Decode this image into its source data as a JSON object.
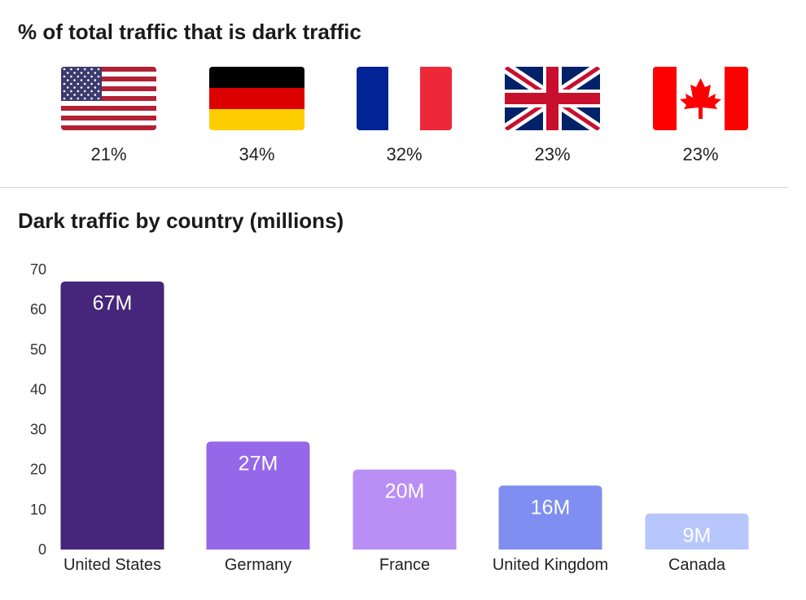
{
  "header": {
    "title": "% of total traffic that is dark traffic"
  },
  "flags": [
    {
      "country": "United States",
      "icon": "us-flag-icon",
      "pct": "21%"
    },
    {
      "country": "Germany",
      "icon": "germany-flag-icon",
      "pct": "34%"
    },
    {
      "country": "France",
      "icon": "france-flag-icon",
      "pct": "32%"
    },
    {
      "country": "United Kingdom",
      "icon": "uk-flag-icon",
      "pct": "23%"
    },
    {
      "country": "Canada",
      "icon": "canada-flag-icon",
      "pct": "23%"
    }
  ],
  "chart_data": {
    "type": "bar",
    "title": "Dark traffic by country (millions)",
    "categories": [
      "United States",
      "Germany",
      "France",
      "United Kingdom",
      "Canada"
    ],
    "values": [
      67,
      27,
      20,
      16,
      9
    ],
    "data_labels": [
      "67M",
      "27M",
      "20M",
      "16M",
      "9M"
    ],
    "colors": [
      "#45267a",
      "#9468e8",
      "#b98ef5",
      "#7f8ef0",
      "#b7c6fb"
    ],
    "xlabel": "",
    "ylabel": "",
    "ylim": [
      0,
      70
    ],
    "yticks": [
      0,
      10,
      20,
      30,
      40,
      50,
      60,
      70
    ],
    "grid": false,
    "legend": "none"
  }
}
